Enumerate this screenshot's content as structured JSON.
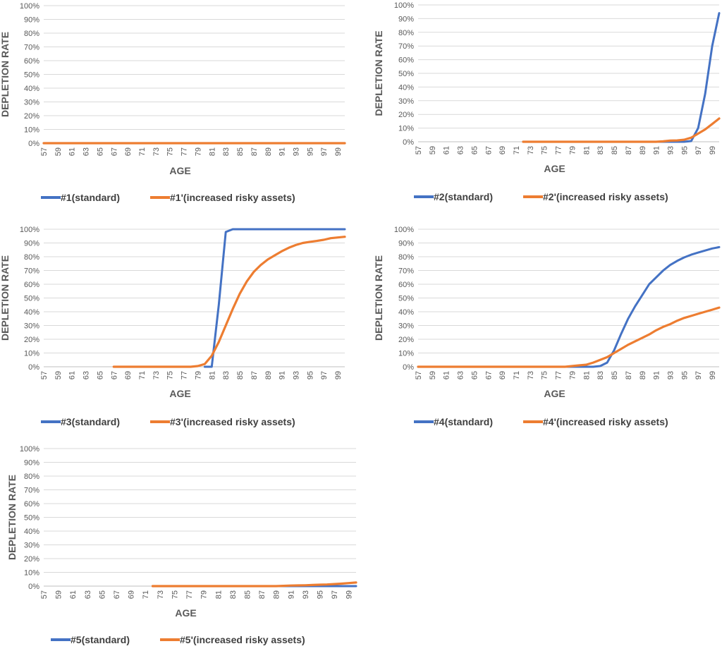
{
  "chart_data": [
    {
      "type": "line",
      "xlabel": "AGE",
      "ylabel": "DEPLETION RATE",
      "ylim": [
        0,
        100
      ],
      "y_ticks": [
        "0%",
        "10%",
        "20%",
        "30%",
        "40%",
        "50%",
        "60%",
        "70%",
        "80%",
        "90%",
        "100%"
      ],
      "x_ticks": [
        "57",
        "59",
        "61",
        "63",
        "65",
        "67",
        "69",
        "71",
        "73",
        "75",
        "77",
        "79",
        "81",
        "83",
        "85",
        "87",
        "89",
        "91",
        "93",
        "95",
        "97",
        "99"
      ],
      "grid": true,
      "legend": "bottom",
      "colors": {
        "standard": "#4472C4",
        "risky": "#ED7D31"
      },
      "series": [
        {
          "name": "#1(standard)",
          "x": [
            57,
            100
          ],
          "values": [
            0,
            0
          ]
        },
        {
          "name": "#1'(increased risky assets)",
          "x": [
            57,
            100
          ],
          "values": [
            0,
            0
          ]
        }
      ]
    },
    {
      "type": "line",
      "xlabel": "AGE",
      "ylabel": "DEPLETION RATE",
      "ylim": [
        0,
        100
      ],
      "y_ticks": [
        "0%",
        "10%",
        "20%",
        "30%",
        "40%",
        "50%",
        "60%",
        "70%",
        "80%",
        "90%",
        "100%"
      ],
      "x_ticks": [
        "57",
        "59",
        "61",
        "63",
        "65",
        "67",
        "69",
        "71",
        "73",
        "75",
        "77",
        "79",
        "81",
        "83",
        "85",
        "87",
        "89",
        "91",
        "93",
        "95",
        "97",
        "99"
      ],
      "grid": true,
      "legend": "bottom",
      "colors": {
        "standard": "#4472C4",
        "risky": "#ED7D31"
      },
      "series": [
        {
          "name": "#2(standard)",
          "x": [
            72,
            95,
            96,
            97,
            98,
            99,
            100
          ],
          "values": [
            0,
            0,
            0.5,
            10,
            35,
            70,
            94
          ]
        },
        {
          "name": "#2'(increased risky assets)",
          "x": [
            72,
            91,
            92,
            93,
            94,
            95,
            96,
            97,
            98,
            99,
            100
          ],
          "values": [
            0,
            0,
            0.3,
            0.8,
            1,
            1.5,
            3,
            6,
            9,
            13,
            17
          ]
        }
      ]
    },
    {
      "type": "line",
      "xlabel": "AGE",
      "ylabel": "DEPLETION RATE",
      "ylim": [
        0,
        100
      ],
      "y_ticks": [
        "0%",
        "10%",
        "20%",
        "30%",
        "40%",
        "50%",
        "60%",
        "70%",
        "80%",
        "90%",
        "100%"
      ],
      "x_ticks": [
        "57",
        "59",
        "61",
        "63",
        "65",
        "67",
        "69",
        "71",
        "73",
        "75",
        "77",
        "79",
        "81",
        "83",
        "85",
        "87",
        "89",
        "91",
        "93",
        "95",
        "97",
        "99"
      ],
      "grid": true,
      "legend": "bottom",
      "colors": {
        "standard": "#4472C4",
        "risky": "#ED7D31"
      },
      "series": [
        {
          "name": "#3(standard)",
          "x": [
            80,
            81,
            82,
            83,
            84,
            100
          ],
          "values": [
            0,
            0,
            45,
            98,
            100,
            100
          ]
        },
        {
          "name": "#3'(increased risky assets)",
          "x": [
            67,
            78,
            79,
            80,
            81,
            82,
            83,
            84,
            85,
            86,
            87,
            88,
            89,
            90,
            91,
            92,
            93,
            94,
            95,
            96,
            97,
            98,
            99,
            100
          ],
          "values": [
            0,
            0,
            0.5,
            2,
            8,
            18,
            30,
            42,
            53,
            62,
            69,
            74,
            78,
            81,
            84,
            86.5,
            88.5,
            90,
            90.8,
            91.5,
            92.3,
            93.5,
            94,
            94.5
          ]
        }
      ]
    },
    {
      "type": "line",
      "xlabel": "AGE",
      "ylabel": "DEPLETION RATE",
      "ylim": [
        0,
        100
      ],
      "y_ticks": [
        "0%",
        "10%",
        "20%",
        "30%",
        "40%",
        "50%",
        "60%",
        "70%",
        "80%",
        "90%",
        "100%"
      ],
      "x_ticks": [
        "57",
        "59",
        "61",
        "63",
        "65",
        "67",
        "69",
        "71",
        "73",
        "75",
        "77",
        "79",
        "81",
        "83",
        "85",
        "87",
        "89",
        "91",
        "93",
        "95",
        "97",
        "99"
      ],
      "grid": true,
      "legend": "bottom",
      "colors": {
        "standard": "#4472C4",
        "risky": "#ED7D31"
      },
      "series": [
        {
          "name": "#4(standard)",
          "x": [
            57,
            82,
            83,
            84,
            85,
            86,
            87,
            88,
            89,
            90,
            91,
            92,
            93,
            94,
            95,
            96,
            97,
            98,
            99,
            100
          ],
          "values": [
            0,
            0,
            0.5,
            3,
            12,
            24,
            35,
            44,
            52,
            60,
            65,
            70,
            74,
            77,
            79.5,
            81.5,
            83,
            84.5,
            86,
            87
          ]
        },
        {
          "name": "#4'(increased risky assets)",
          "x": [
            57,
            78,
            79,
            80,
            81,
            82,
            83,
            84,
            85,
            86,
            87,
            88,
            89,
            90,
            91,
            92,
            93,
            94,
            95,
            96,
            97,
            98,
            99,
            100
          ],
          "values": [
            0,
            0,
            0.5,
            1,
            1.5,
            3,
            5,
            7,
            10,
            13,
            16,
            18.5,
            21,
            23.5,
            26.5,
            29,
            31,
            33.5,
            35.5,
            37,
            38.5,
            40,
            41.5,
            43
          ]
        }
      ]
    },
    {
      "type": "line",
      "xlabel": "AGE",
      "ylabel": "DEPLETION RATE",
      "ylim": [
        0,
        100
      ],
      "y_ticks": [
        "0%",
        "10%",
        "20%",
        "30%",
        "40%",
        "50%",
        "60%",
        "70%",
        "80%",
        "90%",
        "100%"
      ],
      "x_ticks": [
        "57",
        "59",
        "61",
        "63",
        "65",
        "67",
        "69",
        "71",
        "73",
        "75",
        "77",
        "79",
        "81",
        "83",
        "85",
        "87",
        "89",
        "91",
        "93",
        "95",
        "97",
        "99"
      ],
      "grid": true,
      "legend": "bottom",
      "colors": {
        "standard": "#4472C4",
        "risky": "#ED7D31"
      },
      "series": [
        {
          "name": "#5(standard)",
          "x": [
            72,
            100
          ],
          "values": [
            0,
            0
          ]
        },
        {
          "name": "#5'(increased risky assets)",
          "x": [
            72,
            89,
            90,
            91,
            92,
            93,
            94,
            95,
            96,
            97,
            98,
            99,
            100
          ],
          "values": [
            0,
            0,
            0.2,
            0.4,
            0.5,
            0.6,
            0.8,
            1,
            1.2,
            1.5,
            1.8,
            2.2,
            2.6
          ]
        }
      ]
    }
  ]
}
